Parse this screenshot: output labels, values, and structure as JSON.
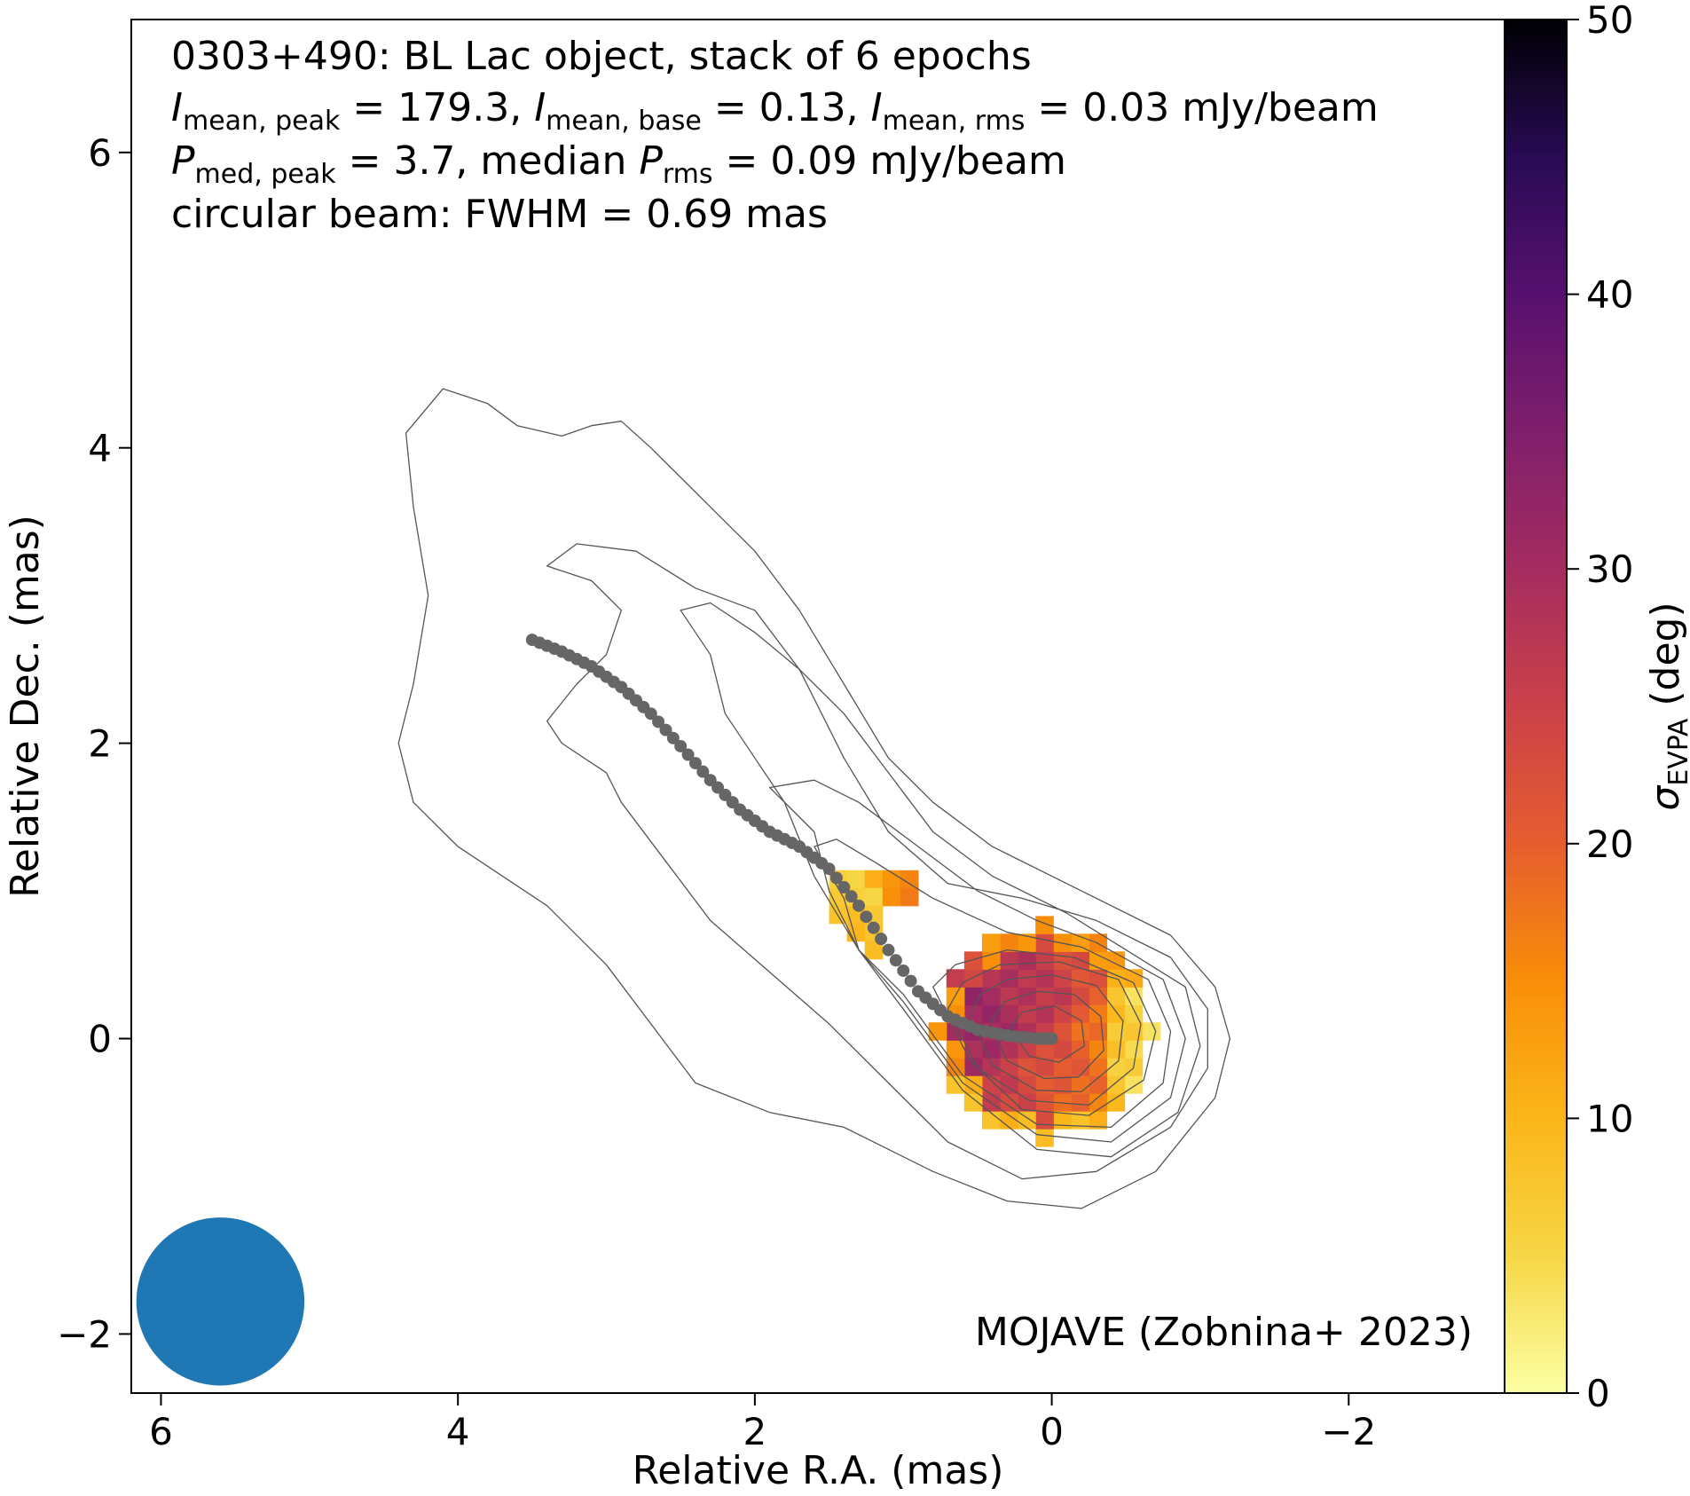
{
  "chart_data": {
    "type": "heatmap",
    "annotation_lines": [
      "0303+490: BL Lac object, stack of 6 epochs",
      "I_mean,peak = 179.3, I_mean,base = 0.13, I_mean,rms = 0.03 mJy/beam",
      "P_med,peak = 3.7, median P_rms = 0.09 mJy/beam",
      "circular beam: FWHM = 0.69 mas"
    ],
    "annotation_parts": {
      "source": "0303+490: BL Lac object, stack of 6 epochs",
      "i_peak_sym": "I",
      "i_peak_sub": "mean, peak",
      "i_peak_val": " = 179.3, ",
      "i_base_sym": "I",
      "i_base_sub": "mean, base",
      "i_base_val": " = 0.13, ",
      "i_rms_sym": "I",
      "i_rms_sub": "mean, rms",
      "i_rms_val": " = 0.03 mJy/beam",
      "p_peak_sym": "P",
      "p_peak_sub": "med, peak",
      "p_peak_val": " = 3.7, median ",
      "p_rms_sym": "P",
      "p_rms_sub": "rms",
      "p_rms_val": " = 0.09 mJy/beam",
      "beam": "circular beam: FWHM = 0.69 mas"
    },
    "credit": "MOJAVE (Zobnina+ 2023)",
    "xlabel": "Relative R.A. (mas)",
    "ylabel": "Relative Dec. (mas)",
    "colorbar_label_symbol": "σ",
    "colorbar_label_sub": "EVPA",
    "colorbar_label_unit": " (deg)",
    "xlim": [
      6.2,
      -3.05
    ],
    "ylim": [
      -2.4,
      6.9
    ],
    "x_ticks": [
      6,
      4,
      2,
      0,
      -2
    ],
    "x_tick_labels": [
      "6",
      "4",
      "2",
      "0",
      "−2"
    ],
    "y_ticks": [
      -2,
      0,
      2,
      4,
      6
    ],
    "y_tick_labels": [
      "−2",
      "0",
      "2",
      "4",
      "6"
    ],
    "colorbar_range": [
      0,
      50
    ],
    "colorbar_ticks": [
      0,
      10,
      20,
      30,
      40,
      50
    ],
    "colorbar_tick_labels": [
      "0",
      "10",
      "20",
      "30",
      "40",
      "50"
    ],
    "colormap": "inferno_r",
    "beam": {
      "ra": 5.6,
      "dec": -1.78,
      "fwhm_mas": 0.69,
      "color": "#1f77b4"
    },
    "ridge_line": {
      "color": "#666666",
      "points": [
        [
          3.5,
          2.7
        ],
        [
          3.3,
          2.62
        ],
        [
          3.1,
          2.52
        ],
        [
          2.9,
          2.38
        ],
        [
          2.7,
          2.2
        ],
        [
          2.5,
          1.98
        ],
        [
          2.3,
          1.75
        ],
        [
          2.1,
          1.55
        ],
        [
          1.9,
          1.4
        ],
        [
          1.7,
          1.3
        ],
        [
          1.5,
          1.15
        ],
        [
          1.3,
          0.9
        ],
        [
          1.1,
          0.6
        ],
        [
          0.9,
          0.32
        ],
        [
          0.7,
          0.15
        ],
        [
          0.5,
          0.06
        ],
        [
          0.3,
          0.02
        ],
        [
          0.1,
          0.0
        ],
        [
          0.0,
          0.0
        ]
      ]
    },
    "contour_color": "#555555",
    "contours": [
      [
        [
          4.1,
          4.4
        ],
        [
          3.8,
          4.3
        ],
        [
          3.6,
          4.15
        ],
        [
          3.3,
          4.08
        ],
        [
          3.1,
          4.15
        ],
        [
          2.9,
          4.18
        ],
        [
          2.7,
          4.0
        ],
        [
          2.4,
          3.7
        ],
        [
          2.0,
          3.3
        ],
        [
          1.7,
          2.9
        ],
        [
          1.4,
          2.4
        ],
        [
          1.1,
          1.9
        ],
        [
          0.8,
          1.6
        ],
        [
          0.4,
          1.3
        ],
        [
          0.0,
          1.1
        ],
        [
          -0.4,
          0.9
        ],
        [
          -0.8,
          0.7
        ],
        [
          -1.1,
          0.35
        ],
        [
          -1.2,
          0.0
        ],
        [
          -1.1,
          -0.4
        ],
        [
          -0.7,
          -0.9
        ],
        [
          -0.2,
          -1.15
        ],
        [
          0.3,
          -1.1
        ],
        [
          0.8,
          -0.9
        ],
        [
          1.4,
          -0.6
        ],
        [
          1.9,
          -0.5
        ],
        [
          2.4,
          -0.3
        ],
        [
          2.7,
          0.1
        ],
        [
          3.0,
          0.5
        ],
        [
          3.4,
          0.9
        ],
        [
          4.0,
          1.3
        ],
        [
          4.3,
          1.6
        ],
        [
          4.4,
          2.0
        ],
        [
          4.3,
          2.4
        ],
        [
          4.2,
          3.0
        ],
        [
          4.3,
          3.6
        ],
        [
          4.35,
          4.1
        ]
      ],
      [
        [
          3.4,
          3.2
        ],
        [
          3.1,
          3.1
        ],
        [
          2.9,
          2.9
        ],
        [
          3.0,
          2.6
        ],
        [
          3.2,
          2.4
        ],
        [
          3.4,
          2.15
        ],
        [
          3.3,
          2.0
        ],
        [
          3.0,
          1.8
        ],
        [
          2.9,
          1.6
        ],
        [
          2.6,
          1.2
        ],
        [
          2.3,
          0.8
        ],
        [
          1.9,
          0.45
        ],
        [
          1.5,
          0.1
        ],
        [
          1.1,
          -0.3
        ],
        [
          0.7,
          -0.7
        ],
        [
          0.2,
          -0.95
        ],
        [
          -0.3,
          -0.9
        ],
        [
          -0.8,
          -0.6
        ],
        [
          -1.05,
          -0.2
        ],
        [
          -1.05,
          0.2
        ],
        [
          -0.8,
          0.55
        ],
        [
          -0.3,
          0.8
        ],
        [
          0.2,
          0.95
        ],
        [
          0.7,
          1.05
        ],
        [
          1.1,
          1.4
        ],
        [
          1.4,
          1.9
        ],
        [
          1.7,
          2.5
        ],
        [
          2.0,
          2.9
        ],
        [
          2.4,
          3.05
        ],
        [
          2.8,
          3.3
        ],
        [
          3.2,
          3.35
        ]
      ],
      [
        [
          2.5,
          2.9
        ],
        [
          2.3,
          2.6
        ],
        [
          2.2,
          2.2
        ],
        [
          2.0,
          1.9
        ],
        [
          1.8,
          1.6
        ],
        [
          1.6,
          1.1
        ],
        [
          1.3,
          0.6
        ],
        [
          1.0,
          0.2
        ],
        [
          0.6,
          -0.35
        ],
        [
          0.1,
          -0.75
        ],
        [
          -0.4,
          -0.8
        ],
        [
          -0.85,
          -0.5
        ],
        [
          -1.0,
          -0.05
        ],
        [
          -0.9,
          0.35
        ],
        [
          -0.5,
          0.6
        ],
        [
          -0.1,
          0.85
        ],
        [
          0.4,
          1.1
        ],
        [
          0.8,
          1.4
        ],
        [
          1.1,
          1.8
        ],
        [
          1.4,
          2.2
        ],
        [
          1.7,
          2.5
        ],
        [
          2.0,
          2.75
        ],
        [
          2.3,
          2.95
        ]
      ],
      [
        [
          1.9,
          1.7
        ],
        [
          1.6,
          1.4
        ],
        [
          1.5,
          1.0
        ],
        [
          1.3,
          0.6
        ],
        [
          1.0,
          0.25
        ],
        [
          0.6,
          -0.3
        ],
        [
          0.1,
          -0.65
        ],
        [
          -0.4,
          -0.7
        ],
        [
          -0.8,
          -0.4
        ],
        [
          -0.9,
          0.0
        ],
        [
          -0.75,
          0.4
        ],
        [
          -0.3,
          0.65
        ],
        [
          0.1,
          0.8
        ],
        [
          0.5,
          1.0
        ],
        [
          0.9,
          1.3
        ],
        [
          1.3,
          1.6
        ],
        [
          1.6,
          1.75
        ]
      ],
      [
        [
          1.6,
          1.3
        ],
        [
          1.4,
          0.95
        ],
        [
          1.3,
          0.6
        ],
        [
          1.0,
          0.3
        ],
        [
          0.6,
          -0.25
        ],
        [
          0.1,
          -0.58
        ],
        [
          -0.4,
          -0.6
        ],
        [
          -0.75,
          -0.3
        ],
        [
          -0.8,
          0.05
        ],
        [
          -0.65,
          0.4
        ],
        [
          -0.2,
          0.62
        ],
        [
          0.3,
          0.72
        ],
        [
          0.8,
          0.95
        ],
        [
          1.2,
          1.2
        ],
        [
          1.45,
          1.35
        ]
      ],
      [
        [
          0.8,
          0.35
        ],
        [
          0.55,
          -0.15
        ],
        [
          0.2,
          -0.48
        ],
        [
          -0.25,
          -0.52
        ],
        [
          -0.62,
          -0.28
        ],
        [
          -0.7,
          0.05
        ],
        [
          -0.55,
          0.38
        ],
        [
          -0.15,
          0.55
        ],
        [
          0.3,
          0.6
        ],
        [
          0.65,
          0.5
        ]
      ],
      [
        [
          0.7,
          0.2
        ],
        [
          0.5,
          -0.2
        ],
        [
          0.15,
          -0.42
        ],
        [
          -0.25,
          -0.45
        ],
        [
          -0.55,
          -0.2
        ],
        [
          -0.6,
          0.1
        ],
        [
          -0.45,
          0.4
        ],
        [
          -0.05,
          0.52
        ],
        [
          0.35,
          0.5
        ],
        [
          0.6,
          0.38
        ]
      ],
      [
        [
          0.55,
          0.15
        ],
        [
          0.4,
          -0.18
        ],
        [
          0.1,
          -0.35
        ],
        [
          -0.2,
          -0.36
        ],
        [
          -0.45,
          -0.15
        ],
        [
          -0.48,
          0.12
        ],
        [
          -0.3,
          0.36
        ],
        [
          0.0,
          0.43
        ],
        [
          0.3,
          0.4
        ],
        [
          0.48,
          0.3
        ]
      ],
      [
        [
          0.42,
          0.1
        ],
        [
          0.3,
          -0.15
        ],
        [
          0.05,
          -0.27
        ],
        [
          -0.18,
          -0.26
        ],
        [
          -0.35,
          -0.08
        ],
        [
          -0.33,
          0.15
        ],
        [
          -0.15,
          0.3
        ],
        [
          0.1,
          0.32
        ],
        [
          0.32,
          0.25
        ]
      ],
      [
        [
          0.28,
          0.07
        ],
        [
          0.15,
          -0.12
        ],
        [
          -0.05,
          -0.16
        ],
        [
          -0.22,
          -0.05
        ],
        [
          -0.2,
          0.12
        ],
        [
          -0.02,
          0.22
        ],
        [
          0.2,
          0.18
        ]
      ]
    ],
    "core_patch": {
      "center_ra": 0.05,
      "center_dec": 0.05,
      "radius": 0.72,
      "cell": 0.12
    },
    "knot_cells": [
      [
        1.44,
        1.08,
        6
      ],
      [
        1.32,
        1.08,
        5
      ],
      [
        1.2,
        1.08,
        11
      ],
      [
        1.08,
        1.08,
        14
      ],
      [
        0.96,
        1.08,
        16
      ],
      [
        1.44,
        0.96,
        7
      ],
      [
        1.32,
        0.96,
        6
      ],
      [
        1.2,
        0.96,
        5
      ],
      [
        1.08,
        0.96,
        15
      ],
      [
        0.96,
        0.96,
        17
      ],
      [
        1.44,
        0.84,
        8
      ],
      [
        1.32,
        0.84,
        9
      ],
      [
        1.2,
        0.84,
        7
      ],
      [
        1.32,
        0.72,
        10
      ],
      [
        1.2,
        0.72,
        8
      ],
      [
        1.2,
        0.6,
        9
      ]
    ]
  }
}
